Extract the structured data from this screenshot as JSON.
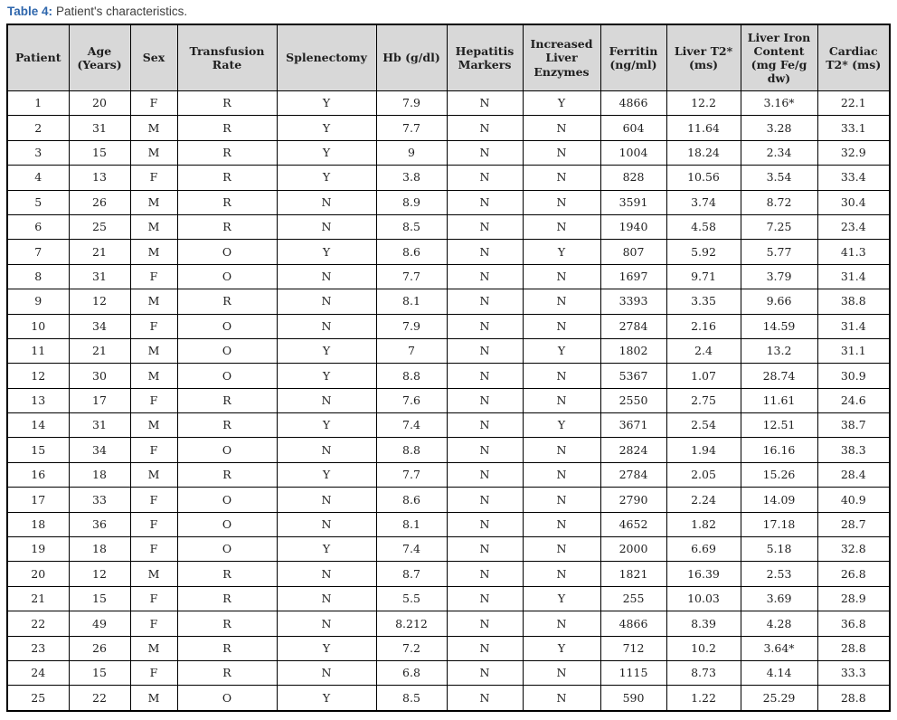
{
  "caption": {
    "label": "Table 4:",
    "text": "Patient's characteristics."
  },
  "colors": {
    "caption_accent": "#2e66ac",
    "header_background": "#d8d8d8",
    "border": "#000000",
    "text": "#1f1f1f"
  },
  "chart_data": {
    "type": "table",
    "title": "Table 4: Patient's characteristics."
  },
  "table": {
    "columns": [
      "Patient",
      "Age (Years)",
      "Sex",
      "Transfusion Rate",
      "Splenectomy",
      "Hb (g/dl)",
      "Hepatitis Markers",
      "Increased Liver Enzymes",
      "Ferritin (ng/ml)",
      "Liver T2* (ms)",
      "Liver Iron Content (mg Fe/g dw)",
      "Cardiac T2* (ms)"
    ],
    "rows": [
      [
        "1",
        "20",
        "F",
        "R",
        "Y",
        "7.9",
        "N",
        "Y",
        "4866",
        "12.2",
        "3.16*",
        "22.1"
      ],
      [
        "2",
        "31",
        "M",
        "R",
        "Y",
        "7.7",
        "N",
        "N",
        "604",
        "11.64",
        "3.28",
        "33.1"
      ],
      [
        "3",
        "15",
        "M",
        "R",
        "Y",
        "9",
        "N",
        "N",
        "1004",
        "18.24",
        "2.34",
        "32.9"
      ],
      [
        "4",
        "13",
        "F",
        "R",
        "Y",
        "3.8",
        "N",
        "N",
        "828",
        "10.56",
        "3.54",
        "33.4"
      ],
      [
        "5",
        "26",
        "M",
        "R",
        "N",
        "8.9",
        "N",
        "N",
        "3591",
        "3.74",
        "8.72",
        "30.4"
      ],
      [
        "6",
        "25",
        "M",
        "R",
        "N",
        "8.5",
        "N",
        "N",
        "1940",
        "4.58",
        "7.25",
        "23.4"
      ],
      [
        "7",
        "21",
        "M",
        "O",
        "Y",
        "8.6",
        "N",
        "Y",
        "807",
        "5.92",
        "5.77",
        "41.3"
      ],
      [
        "8",
        "31",
        "F",
        "O",
        "N",
        "7.7",
        "N",
        "N",
        "1697",
        "9.71",
        "3.79",
        "31.4"
      ],
      [
        "9",
        "12",
        "M",
        "R",
        "N",
        "8.1",
        "N",
        "N",
        "3393",
        "3.35",
        "9.66",
        "38.8"
      ],
      [
        "10",
        "34",
        "F",
        "O",
        "N",
        "7.9",
        "N",
        "N",
        "2784",
        "2.16",
        "14.59",
        "31.4"
      ],
      [
        "11",
        "21",
        "M",
        "O",
        "Y",
        "7",
        "N",
        "Y",
        "1802",
        "2.4",
        "13.2",
        "31.1"
      ],
      [
        "12",
        "30",
        "M",
        "O",
        "Y",
        "8.8",
        "N",
        "N",
        "5367",
        "1.07",
        "28.74",
        "30.9"
      ],
      [
        "13",
        "17",
        "F",
        "R",
        "N",
        "7.6",
        "N",
        "N",
        "2550",
        "2.75",
        "11.61",
        "24.6"
      ],
      [
        "14",
        "31",
        "M",
        "R",
        "Y",
        "7.4",
        "N",
        "Y",
        "3671",
        "2.54",
        "12.51",
        "38.7"
      ],
      [
        "15",
        "34",
        "F",
        "O",
        "N",
        "8.8",
        "N",
        "N",
        "2824",
        "1.94",
        "16.16",
        "38.3"
      ],
      [
        "16",
        "18",
        "M",
        "R",
        "Y",
        "7.7",
        "N",
        "N",
        "2784",
        "2.05",
        "15.26",
        "28.4"
      ],
      [
        "17",
        "33",
        "F",
        "O",
        "N",
        "8.6",
        "N",
        "N",
        "2790",
        "2.24",
        "14.09",
        "40.9"
      ],
      [
        "18",
        "36",
        "F",
        "O",
        "N",
        "8.1",
        "N",
        "N",
        "4652",
        "1.82",
        "17.18",
        "28.7"
      ],
      [
        "19",
        "18",
        "F",
        "O",
        "Y",
        "7.4",
        "N",
        "N",
        "2000",
        "6.69",
        "5.18",
        "32.8"
      ],
      [
        "20",
        "12",
        "M",
        "R",
        "N",
        "8.7",
        "N",
        "N",
        "1821",
        "16.39",
        "2.53",
        "26.8"
      ],
      [
        "21",
        "15",
        "F",
        "R",
        "N",
        "5.5",
        "N",
        "Y",
        "255",
        "10.03",
        "3.69",
        "28.9"
      ],
      [
        "22",
        "49",
        "F",
        "R",
        "N",
        "8.212",
        "N",
        "N",
        "4866",
        "8.39",
        "4.28",
        "36.8"
      ],
      [
        "23",
        "26",
        "M",
        "R",
        "Y",
        "7.2",
        "N",
        "Y",
        "712",
        "10.2",
        "3.64*",
        "28.8"
      ],
      [
        "24",
        "15",
        "F",
        "R",
        "N",
        "6.8",
        "N",
        "N",
        "1115",
        "8.73",
        "4.14",
        "33.3"
      ],
      [
        "25",
        "22",
        "M",
        "O",
        "Y",
        "8.5",
        "N",
        "N",
        "590",
        "1.22",
        "25.29",
        "28.8"
      ]
    ]
  }
}
